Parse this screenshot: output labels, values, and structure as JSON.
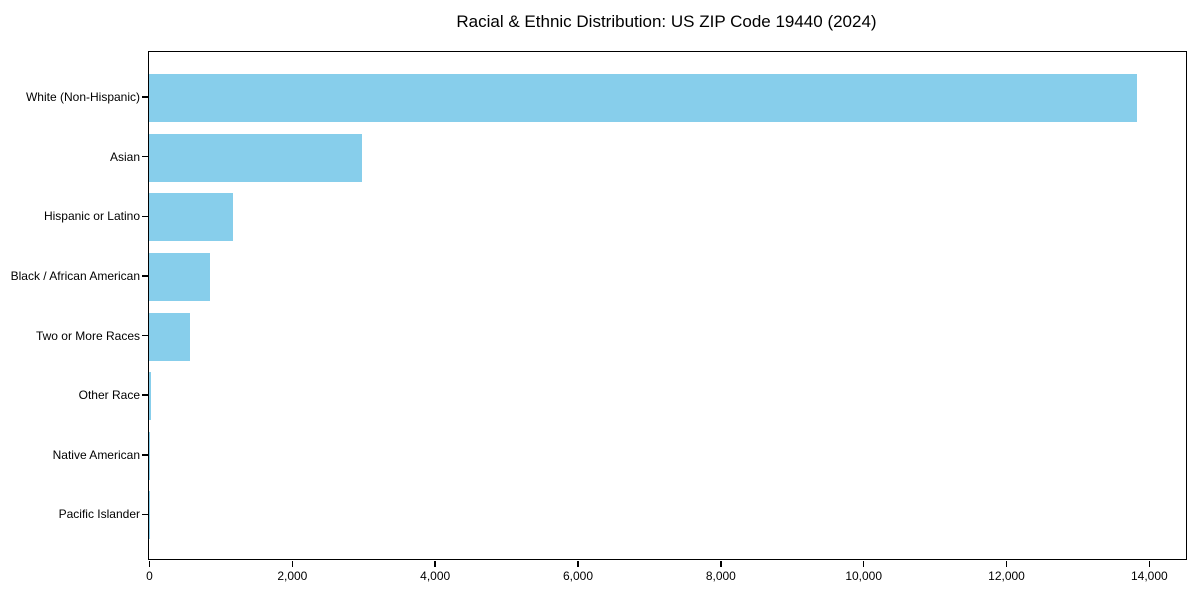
{
  "chart_data": {
    "type": "bar",
    "orientation": "horizontal",
    "title": "Racial & Ethnic Distribution: US ZIP Code 19440 (2024)",
    "categories": [
      "White (Non-Hispanic)",
      "Asian",
      "Hispanic or Latino",
      "Black / African American",
      "Two or More Races",
      "Other Race",
      "Native American",
      "Pacific Islander"
    ],
    "values": [
      13835,
      2980,
      1175,
      860,
      570,
      22,
      9,
      2
    ],
    "xlabel": "",
    "ylabel": "",
    "xlim": [
      0,
      14520
    ],
    "xticks": {
      "values": [
        0,
        2000,
        4000,
        6000,
        8000,
        10000,
        12000,
        14000
      ],
      "labels": [
        "0",
        "2,000",
        "4,000",
        "6,000",
        "8,000",
        "10,000",
        "12,000",
        "14,000"
      ]
    },
    "grid": false,
    "legend": null,
    "bar_color": "#87CEEB",
    "axis_color": "#000000"
  }
}
